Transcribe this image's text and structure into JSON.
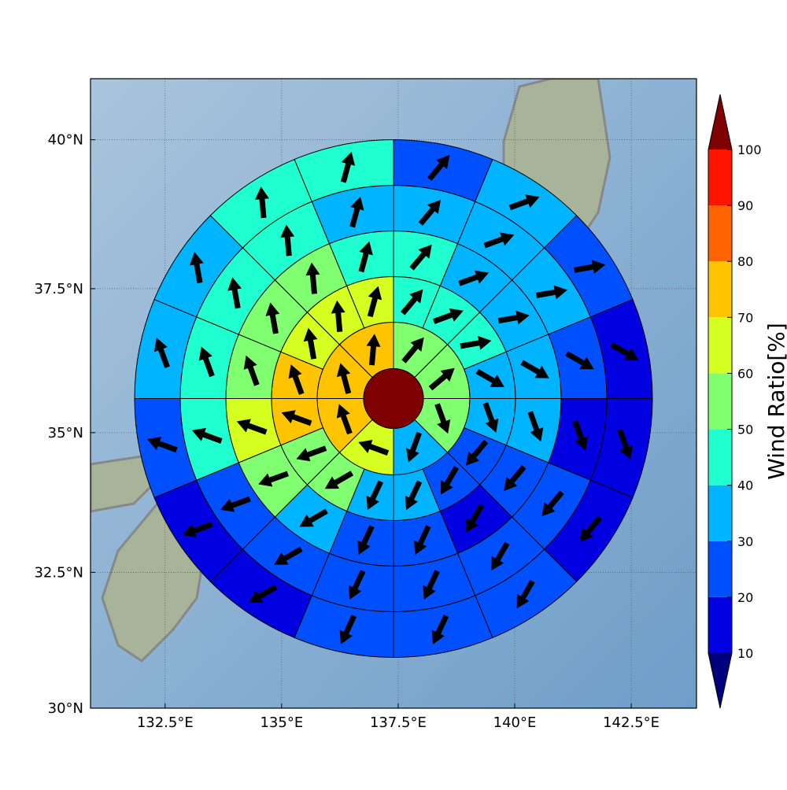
{
  "chart_data": {
    "type": "wind-rose-map",
    "xlim": [
      130.9,
      143.9
    ],
    "ylim": [
      30,
      41
    ],
    "xticks": [
      {
        "value": 132.5,
        "label": "132.5°E"
      },
      {
        "value": 135,
        "label": "135°E"
      },
      {
        "value": 137.5,
        "label": "137.5°E"
      },
      {
        "value": 140,
        "label": "140°E"
      },
      {
        "value": 142.5,
        "label": "142.5°E"
      }
    ],
    "yticks": [
      {
        "value": 30,
        "label": "30°N"
      },
      {
        "value": 32.5,
        "label": "32.5°N"
      },
      {
        "value": 35,
        "label": "35°N"
      },
      {
        "value": 37.5,
        "label": "37.5°N"
      },
      {
        "value": 40,
        "label": "40°N"
      }
    ],
    "grid": true,
    "center": {
      "lon": 137.4,
      "lat": 35.6,
      "value": 100
    },
    "rings": [
      {
        "values": [
          55,
          55,
          55,
          35,
          65,
          75,
          75,
          75
        ],
        "directions": [
          40,
          50,
          160,
          200,
          290,
          340,
          345,
          5
        ]
      },
      {
        "values": [
          45,
          45,
          45,
          35,
          35,
          25,
          25,
          35,
          35,
          55,
          55,
          75,
          75,
          65,
          65,
          65
        ],
        "directions": [
          40,
          70,
          80,
          120,
          160,
          220,
          210,
          205,
          205,
          240,
          250,
          290,
          340,
          350,
          355,
          15
        ]
      },
      {
        "values": [
          45,
          35,
          35,
          35,
          35,
          25,
          15,
          25,
          25,
          35,
          55,
          65,
          55,
          55,
          55,
          45
        ],
        "directions": [
          40,
          70,
          80,
          120,
          160,
          220,
          210,
          205,
          205,
          240,
          250,
          290,
          340,
          350,
          355,
          15
        ]
      },
      {
        "values": [
          35,
          35,
          35,
          25,
          15,
          25,
          25,
          25,
          25,
          25,
          25,
          45,
          45,
          45,
          45,
          35
        ],
        "directions": [
          40,
          70,
          80,
          120,
          160,
          220,
          210,
          205,
          205,
          240,
          250,
          290,
          340,
          350,
          355,
          15
        ]
      },
      {
        "values": [
          25,
          35,
          25,
          15,
          15,
          15,
          25,
          25,
          25,
          15,
          15,
          25,
          35,
          35,
          45,
          45
        ],
        "directions": [
          40,
          70,
          80,
          120,
          160,
          220,
          210,
          205,
          205,
          240,
          250,
          290,
          340,
          350,
          355,
          15
        ]
      }
    ],
    "colorbar": {
      "label": "Wind Ratio[%]",
      "levels": [
        10,
        20,
        30,
        40,
        50,
        60,
        70,
        80,
        90,
        100
      ],
      "colors": [
        "#0000e0",
        "#0050ff",
        "#00b4ff",
        "#20ffd0",
        "#80ff70",
        "#d4ff20",
        "#ffc400",
        "#ff6400",
        "#ff1400"
      ],
      "under": "#00007f",
      "over": "#7f0000"
    }
  }
}
